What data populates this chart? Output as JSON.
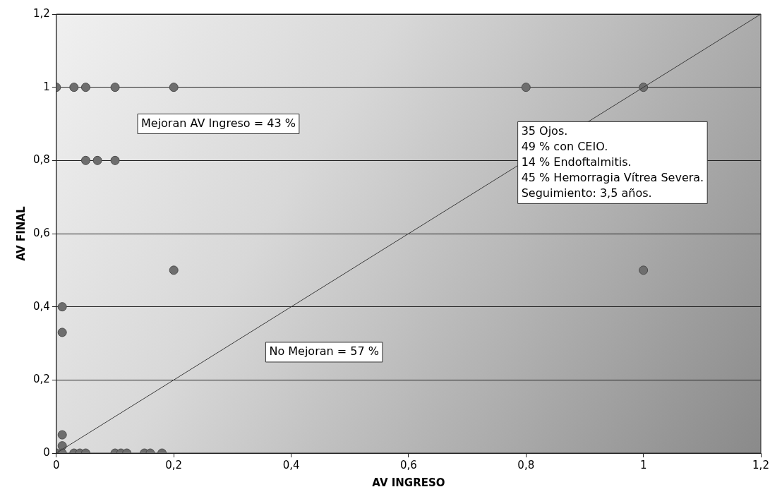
{
  "chart_data": {
    "type": "scatter",
    "xlabel": "AV INGRESO",
    "ylabel": "AV FINAL",
    "xlim": [
      0,
      1.2
    ],
    "ylim": [
      0,
      1.2
    ],
    "xticks": [
      0,
      {
        "value": 0.2,
        "label": "0,2"
      },
      {
        "value": 0.4,
        "label": "0,4"
      },
      {
        "value": 0.6,
        "label": "0,6"
      },
      {
        "value": 0.8,
        "label": "0,8"
      },
      1,
      {
        "value": 1.2,
        "label": "1,2"
      }
    ],
    "yticks": [
      0,
      {
        "value": 0.2,
        "label": "0,2"
      },
      {
        "value": 0.4,
        "label": "0,4"
      },
      {
        "value": 0.6,
        "label": "0,6"
      },
      {
        "value": 0.8,
        "label": "0,8"
      },
      1,
      {
        "value": 1.2,
        "label": "1,2"
      }
    ],
    "grid": "y",
    "legend": false,
    "marker": "circle",
    "series": [
      {
        "type": "scatter",
        "color": "#6e6e6e",
        "x": [
          0,
          0.03,
          0.05,
          0.1,
          0.2,
          0.8,
          1,
          0.05,
          0.07,
          0.1,
          0.2,
          1,
          0.01,
          0.01,
          0.01,
          0.01,
          0,
          0.01,
          0.03,
          0.04,
          0.05,
          0.1,
          0.11,
          0.12,
          0.15,
          0.16,
          0.18
        ],
        "values": [
          1,
          1,
          1,
          1,
          1,
          1,
          1,
          0.8,
          0.8,
          0.8,
          0.5,
          0.5,
          0.4,
          0.33,
          0.05,
          0.02,
          0,
          0,
          0,
          0,
          0,
          0,
          0,
          0,
          0,
          0,
          0
        ]
      },
      {
        "type": "line",
        "color": "#3a3a3a",
        "x": [
          0,
          1.2
        ],
        "values": [
          0,
          1.2
        ],
        "marker": "none"
      }
    ],
    "annotations": [
      "Mejoran AV Ingreso = 43 %",
      "No Mejoran = 57 %",
      "35 Ojos.\n49 % con CEIO.\n14 % Endoftalmitis.\n45 % Hemorragia Vítrea Severa.\nSeguimiento: 3,5 años."
    ]
  }
}
